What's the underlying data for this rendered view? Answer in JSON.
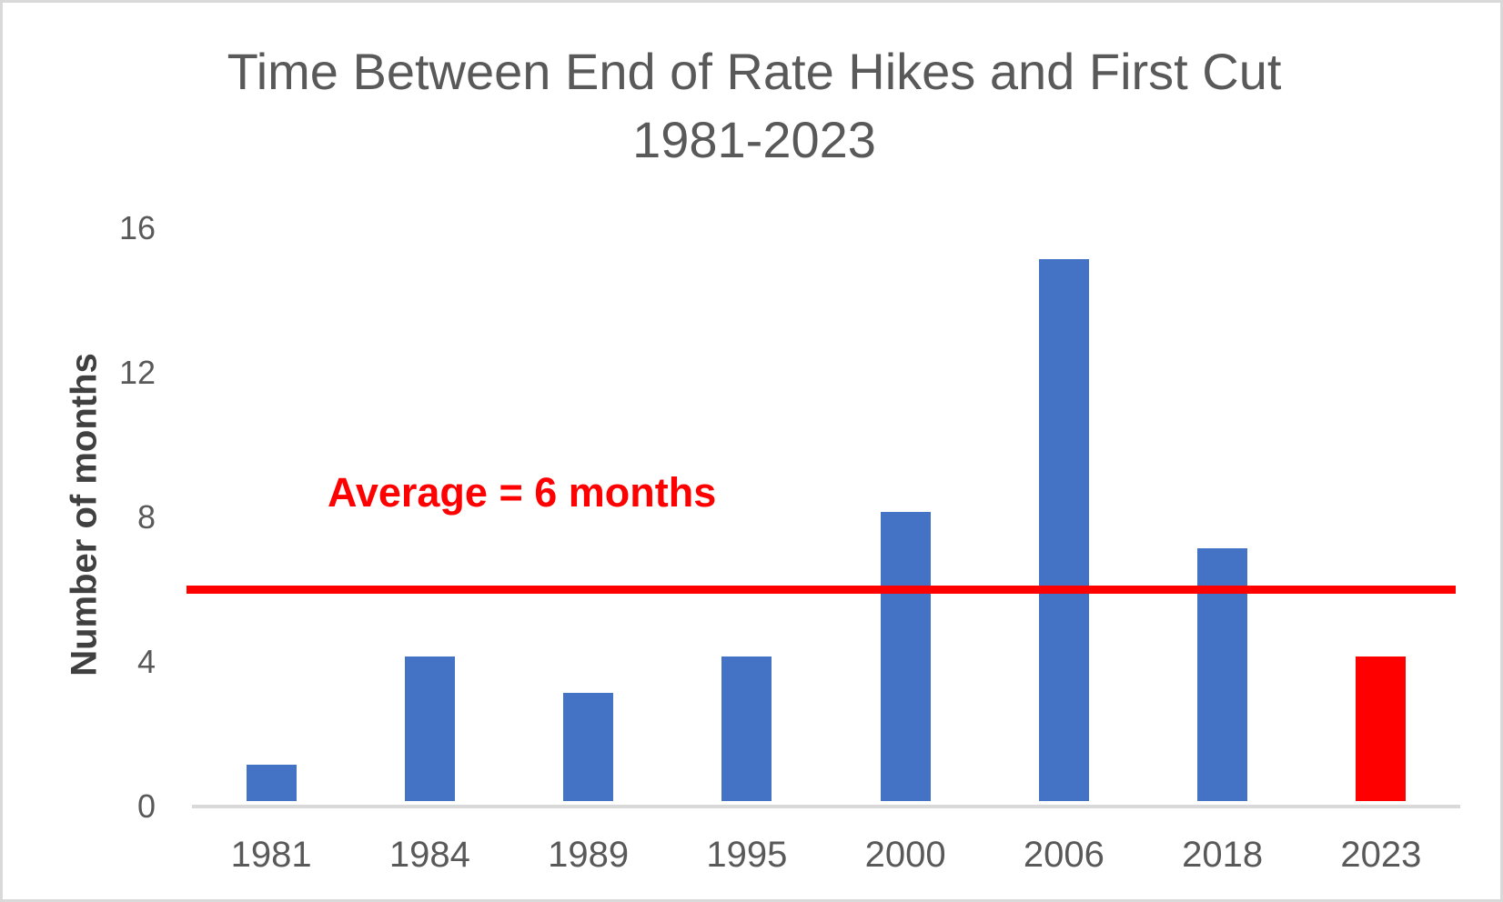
{
  "chart": {
    "title_line1": "Time Between End of Rate Hikes and First Cut",
    "title_line2": "1981-2023",
    "y_axis_title": "Number of months",
    "annotation_label": "Average = 6 months"
  },
  "chart_data": {
    "type": "bar",
    "title": "Time Between End of Rate Hikes and First Cut 1981-2023",
    "categories": [
      "1981",
      "1984",
      "1989",
      "1995",
      "2000",
      "2006",
      "2018",
      "2023"
    ],
    "values": [
      1,
      4,
      3,
      4,
      8,
      15,
      7,
      4
    ],
    "bar_colors": [
      "#4472C4",
      "#4472C4",
      "#4472C4",
      "#4472C4",
      "#4472C4",
      "#4472C4",
      "#4472C4",
      "#FF0000"
    ],
    "xlabel": "",
    "ylabel": "Number of months",
    "ylim": [
      0,
      16
    ],
    "yticks": [
      0,
      4,
      8,
      12,
      16
    ],
    "grid": false,
    "legend": "none",
    "annotation_line": {
      "value": 6,
      "label": "Average = 6 months",
      "color": "#FF0000"
    },
    "colors": {
      "default_bar": "#4472C4",
      "highlight_bar": "#FF0000",
      "title_text": "#595959",
      "tick_text": "#595959",
      "y_axis_title_text": "#404040",
      "axis_line": "#D9D9D9",
      "canvas_border": "#D9D9D9",
      "background": "#FFFFFF"
    }
  }
}
